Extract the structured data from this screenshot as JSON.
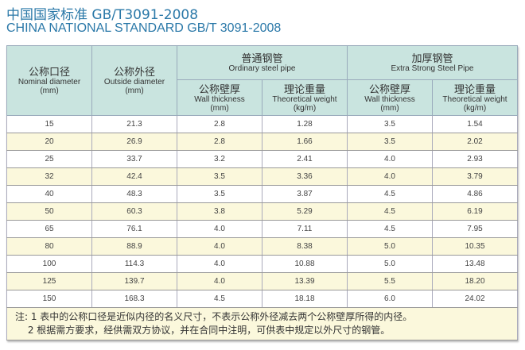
{
  "title_cn": "中国国家标准 GB/T3091-2008",
  "title_en": "CHINA NATIONAL STANDARD GB/T 3091-2008",
  "headers": {
    "nominal": {
      "cn": "公称口径",
      "en": "Nominal diameter",
      "unit": "(mm)"
    },
    "outside": {
      "cn": "公称外径",
      "en": "Outside diameter",
      "unit": "(mm)"
    },
    "ordinary": {
      "cn": "普通钢管",
      "en": "Ordinary steel pipe"
    },
    "extra": {
      "cn": "加厚钢管",
      "en": "Extra Strong Steel Pipe"
    },
    "wall": {
      "cn": "公称壁厚",
      "en": "Wall thickness",
      "unit": "(mm)"
    },
    "weight": {
      "cn": "理论重量",
      "en": "Theoretical weight",
      "unit": "(kg/m)"
    }
  },
  "rows": [
    [
      "15",
      "21.3",
      "2.8",
      "1.28",
      "3.5",
      "1.54"
    ],
    [
      "20",
      "26.9",
      "2.8",
      "1.66",
      "3.5",
      "2.02"
    ],
    [
      "25",
      "33.7",
      "3.2",
      "2.41",
      "4.0",
      "2.93"
    ],
    [
      "32",
      "42.4",
      "3.5",
      "3.36",
      "4.0",
      "3.79"
    ],
    [
      "40",
      "48.3",
      "3.5",
      "3.87",
      "4.5",
      "4.86"
    ],
    [
      "50",
      "60.3",
      "3.8",
      "5.29",
      "4.5",
      "6.19"
    ],
    [
      "65",
      "76.1",
      "4.0",
      "7.11",
      "4.5",
      "7.95"
    ],
    [
      "80",
      "88.9",
      "4.0",
      "8.38",
      "5.0",
      "10.35"
    ],
    [
      "100",
      "114.3",
      "4.0",
      "10.88",
      "5.0",
      "13.48"
    ],
    [
      "125",
      "139.7",
      "4.0",
      "13.39",
      "5.5",
      "18.20"
    ],
    [
      "150",
      "168.3",
      "4.5",
      "18.18",
      "6.0",
      "24.02"
    ]
  ],
  "notes": [
    "注: 1 表中的公称口径是近似内径的名义尺寸，不表示公称外径减去两个公称壁厚所得的内径。",
    "　 2 根据需方要求，经供需双方协议，并在合同中注明，可供表中规定以外尺寸的钢管。"
  ],
  "colors": {
    "header": "#c9e4df",
    "alt_row": "#fbf8dc",
    "title": "#2a78a8"
  }
}
